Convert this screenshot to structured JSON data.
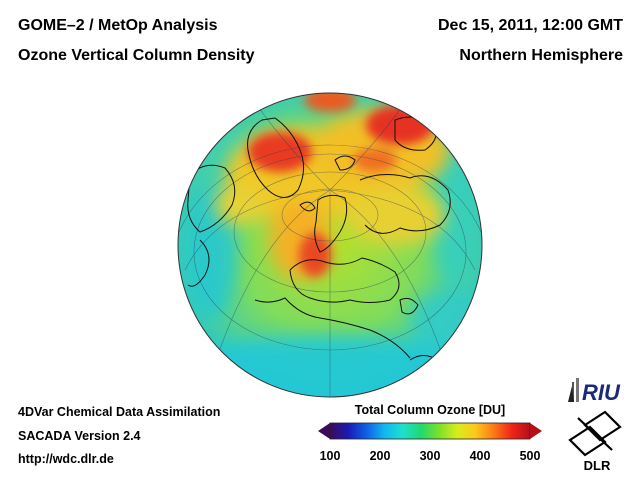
{
  "header": {
    "title_line1": "GOME–2 / MetOp Analysis",
    "title_line2": "Ozone Vertical Column Density",
    "date": "Dec 15, 2011, 12:00 GMT",
    "region": "Northern Hemisphere"
  },
  "footer": {
    "line1": "4DVar Chemical Data Assimilation",
    "line2": "SACADA Version 2.4",
    "line3": "http://wdc.dlr.de"
  },
  "colorbar": {
    "title": "Total Column Ozone [DU]",
    "min": 100,
    "max": 500,
    "ticks": [
      "100",
      "200",
      "300",
      "400",
      "500"
    ],
    "colors": [
      "#3d0a5a",
      "#1a1ab4",
      "#1060e6",
      "#12b8ee",
      "#1ee0cc",
      "#22d870",
      "#7ce02a",
      "#d8ec1e",
      "#fcc81a",
      "#fc7a16",
      "#f02418",
      "#b4101a"
    ]
  },
  "logos": {
    "riu": "RIU",
    "dlr": "DLR"
  },
  "map": {
    "projection": "orthographic, Northern Hemisphere",
    "ozone_colors": {
      "low": "#20c8d8",
      "mid": "#6cdc6a",
      "high": "#f0c828",
      "peak": "#e83020"
    }
  }
}
